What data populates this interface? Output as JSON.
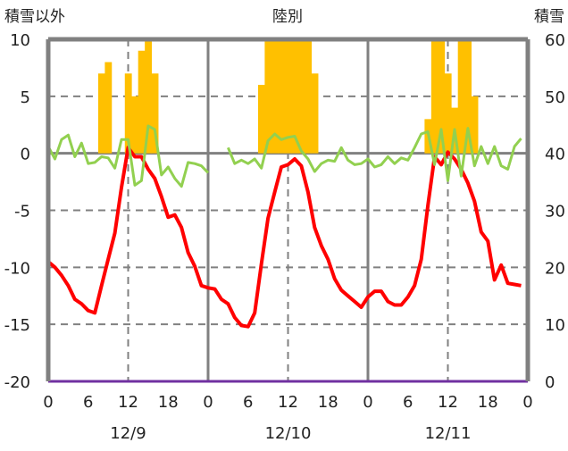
{
  "chart_data": {
    "type": "bar+line",
    "title": "陸別",
    "ylabel_left": "積雪以外",
    "ylabel_right": "積雪",
    "ylim_left": [
      -20,
      10
    ],
    "yticks_left": [
      10,
      5,
      0,
      -5,
      -10,
      -15,
      -20
    ],
    "ylim_right": [
      0,
      60
    ],
    "yticks_right": [
      60,
      50,
      40,
      30,
      20,
      10,
      0
    ],
    "xlim_hours": [
      0,
      72
    ],
    "xtick_labels": [
      "0",
      "6",
      "12",
      "18",
      "0",
      "6",
      "12",
      "18",
      "0",
      "6",
      "12",
      "18",
      "0"
    ],
    "date_labels": [
      "12/9",
      "12/10",
      "12/11"
    ],
    "grid": "horizontal dashed at 5/-5/-10/-15; solid day separators; dashed at 12h",
    "colors": {
      "snow": "#FFC000",
      "temperature": "#FF0000",
      "secondary": "#92D050",
      "baseline": "#7030A0",
      "frame": "#808080"
    },
    "snow_bars": {
      "axis": "right",
      "hours": [
        8,
        9,
        12,
        13,
        14,
        15,
        16,
        32,
        33,
        34,
        35,
        36,
        37,
        38,
        39,
        40,
        57,
        58,
        59,
        60,
        61,
        62,
        63,
        64
      ],
      "values": [
        54,
        56,
        54,
        50,
        58,
        60,
        54,
        52,
        60,
        60,
        60,
        60,
        60,
        60,
        60,
        54,
        46,
        60,
        60,
        54,
        48,
        60,
        60,
        50
      ]
    },
    "series": [
      {
        "name": "temperature",
        "axis": "left",
        "color": "#FF0000",
        "hours": [
          0,
          1,
          2,
          3,
          4,
          5,
          6,
          7,
          8,
          9,
          10,
          11,
          12,
          13,
          14,
          15,
          16,
          17,
          18,
          19,
          20,
          21,
          22,
          23,
          24,
          25,
          26,
          27,
          28,
          29,
          30,
          31,
          32,
          33,
          34,
          35,
          36,
          37,
          38,
          39,
          40,
          41,
          42,
          43,
          44,
          45,
          46,
          47,
          48,
          49,
          50,
          51,
          52,
          53,
          54,
          55,
          56,
          57,
          58,
          59,
          60,
          61,
          62,
          63,
          64,
          65,
          66,
          67,
          68,
          69,
          70,
          71
        ],
        "values": [
          -9.5,
          -10,
          -10.7,
          -11.6,
          -12.8,
          -13.2,
          -13.8,
          -14,
          -11.6,
          -9.3,
          -7,
          -3,
          0.5,
          -0.3,
          -0.3,
          -1.4,
          -2.2,
          -3.8,
          -5.6,
          -5.4,
          -6.5,
          -8.7,
          -9.9,
          -11.6,
          -11.8,
          -11.9,
          -12.8,
          -13.2,
          -14.4,
          -15.1,
          -15.2,
          -14,
          -9.7,
          -5.7,
          -3.4,
          -1.2,
          -1,
          -0.5,
          -1.1,
          -3.4,
          -6.5,
          -8.1,
          -9.3,
          -11,
          -12,
          -12.5,
          -13,
          -13.5,
          -12.6,
          -12.1,
          -12.1,
          -13,
          -13.3,
          -13.3,
          -12.6,
          -11.6,
          -9.3,
          -4.6,
          -0.3,
          -1,
          0.1,
          -0.5,
          -1.4,
          -2.6,
          -4.2,
          -6.9,
          -7.7,
          -11.1,
          -9.8,
          -11.4,
          -11.5,
          -11.6
        ]
      },
      {
        "name": "secondary",
        "axis": "left",
        "color": "#92D050",
        "segments": [
          {
            "hours": [
              0,
              1,
              2,
              3,
              4,
              5,
              6,
              7,
              8,
              9,
              10,
              11,
              12,
              13,
              14,
              15,
              16,
              17,
              18,
              19,
              20,
              21,
              22,
              23,
              24
            ],
            "values": [
              0.6,
              -0.5,
              1.2,
              1.6,
              -0.3,
              0.9,
              -0.9,
              -0.8,
              -0.3,
              -0.4,
              -1.3,
              1.2,
              1.2,
              -2.8,
              -2.4,
              2.4,
              2.1,
              -1.9,
              -1.2,
              -2.2,
              -2.9,
              -0.8,
              -0.9,
              -1.1,
              -1.7
            ]
          },
          {
            "hours": [
              27,
              28,
              29,
              30,
              31,
              32,
              33,
              34,
              35,
              36,
              37,
              38,
              39,
              40,
              41,
              42,
              43,
              44,
              45,
              46,
              47,
              48,
              49,
              50,
              51,
              52,
              53,
              54,
              55,
              56,
              57,
              58,
              59,
              60,
              61,
              62,
              63,
              64,
              65,
              66,
              67,
              68,
              69,
              70,
              71
            ],
            "values": [
              0.5,
              -0.9,
              -0.6,
              -0.9,
              -0.5,
              -1.3,
              1.1,
              1.7,
              1.2,
              1.4,
              1.5,
              0.2,
              -0.5,
              -1.6,
              -0.9,
              -0.6,
              -0.7,
              0.5,
              -0.6,
              -1,
              -0.9,
              -0.5,
              -1.2,
              -1,
              -0.3,
              -0.9,
              -0.4,
              -0.6,
              0.5,
              1.7,
              1.9,
              -1,
              2.1,
              -2.4,
              2.1,
              -2,
              2.2,
              -1.1,
              0.6,
              -0.9,
              0.6,
              -1.1,
              -1.4,
              0.6,
              1.3
            ]
          }
        ]
      },
      {
        "name": "baseline",
        "axis": "left",
        "color": "#7030A0",
        "hours": [
          0,
          72
        ],
        "values": [
          -20,
          -20
        ]
      }
    ]
  }
}
